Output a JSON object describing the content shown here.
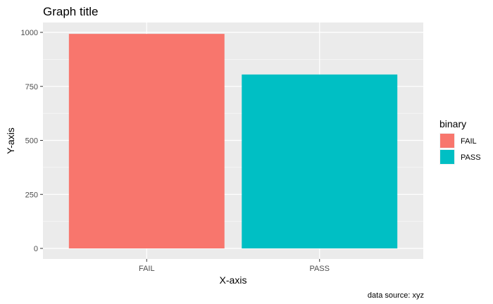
{
  "chart_data": {
    "type": "bar",
    "title": "Graph title",
    "xlabel": "X-axis",
    "ylabel": "Y-axis",
    "categories": [
      "FAIL",
      "PASS"
    ],
    "values": [
      993,
      805
    ],
    "ylim": [
      0,
      1000
    ],
    "yticks": [
      0,
      250,
      500,
      750,
      1000
    ],
    "bar_colors": [
      "#F8766D",
      "#00BFC4"
    ],
    "grid": true,
    "panel_background": "#EBEBEB",
    "legend": {
      "title": "binary",
      "position": "right",
      "entries": [
        {
          "label": "FAIL",
          "color": "#F8766D"
        },
        {
          "label": "PASS",
          "color": "#00BFC4"
        }
      ]
    },
    "caption": "data source: xyz"
  }
}
